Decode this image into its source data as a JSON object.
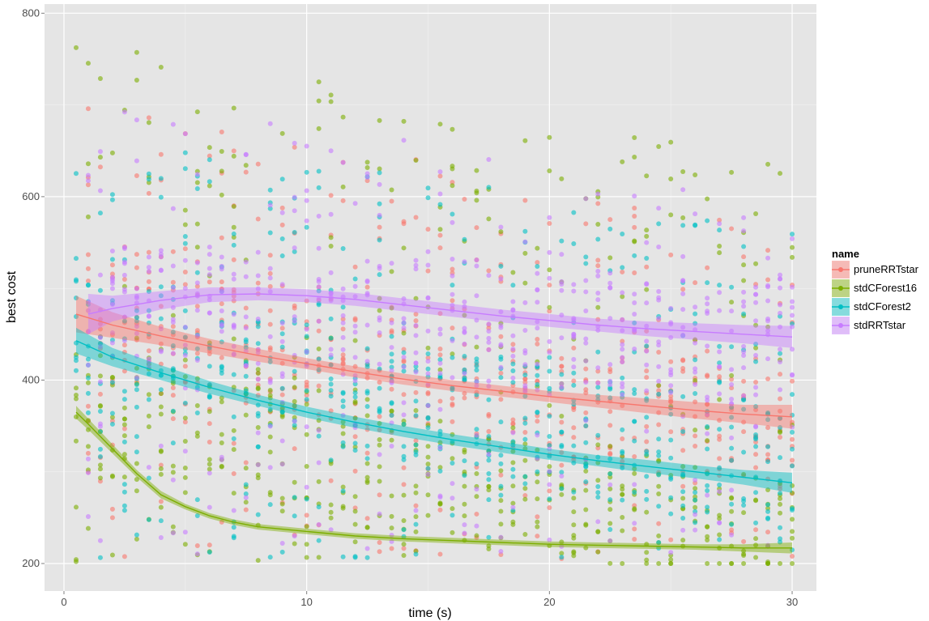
{
  "chart_data": {
    "type": "scatter",
    "title": "",
    "xlabel": "time (s)",
    "ylabel": "best cost",
    "xlim": [
      -0.8,
      31.0
    ],
    "ylim": [
      170,
      810
    ],
    "x_ticks": [
      0,
      10,
      20,
      30
    ],
    "y_ticks": [
      200,
      400,
      600,
      800
    ],
    "grid": true,
    "legend": {
      "title": "name",
      "position": "right",
      "entries": [
        "pruneRRTstar",
        "stdCForest16",
        "stdCForest2",
        "stdRRTstar"
      ]
    },
    "series": [
      {
        "name": "pruneRRTstar",
        "color": "#F8766D",
        "smooth_x": [
          0.5,
          2,
          4,
          6,
          8,
          10,
          12,
          14,
          16,
          18,
          20,
          22,
          24,
          26,
          28,
          30
        ],
        "smooth_y": [
          472,
          460,
          448,
          437,
          427,
          418,
          409,
          401,
          394,
          388,
          382,
          377,
          372,
          367,
          363,
          360
        ],
        "band_half": [
          20,
          14,
          10,
          8,
          7,
          6,
          6,
          6,
          6,
          6,
          6,
          7,
          8,
          9,
          10,
          13
        ],
        "points_x_range": [
          1,
          30
        ],
        "points_y_range": [
          205,
          700
        ],
        "points_y_center": [
          470,
          340
        ]
      },
      {
        "name": "stdCForest16",
        "color": "#7CAE00",
        "smooth_x": [
          0.5,
          1,
          2,
          3,
          4,
          5,
          6,
          7,
          8,
          10,
          12,
          14,
          16,
          18,
          20,
          22,
          24,
          26,
          28,
          30
        ],
        "smooth_y": [
          365,
          352,
          325,
          298,
          275,
          262,
          252,
          245,
          240,
          235,
          230,
          227,
          225,
          223,
          221,
          220,
          219,
          218,
          217,
          217
        ],
        "band_half": [
          7,
          6,
          5,
          4,
          4,
          3,
          3,
          3,
          3,
          3,
          3,
          3,
          3,
          3,
          3,
          3,
          3,
          3,
          4,
          6
        ],
        "points_x_range": [
          0.5,
          30
        ],
        "points_y_range": [
          200,
          780
        ],
        "points_y_center": [
          370,
          220
        ]
      },
      {
        "name": "stdCForest2",
        "color": "#00BFC4",
        "smooth_x": [
          0.5,
          2,
          4,
          6,
          8,
          10,
          12,
          14,
          16,
          18,
          20,
          22,
          24,
          26,
          28,
          30
        ],
        "smooth_y": [
          443,
          425,
          408,
          392,
          378,
          365,
          354,
          344,
          335,
          327,
          319,
          312,
          306,
          300,
          294,
          288
        ],
        "band_half": [
          14,
          10,
          8,
          7,
          6,
          6,
          6,
          6,
          6,
          6,
          6,
          6,
          7,
          7,
          8,
          11
        ],
        "points_x_range": [
          0.5,
          30
        ],
        "points_y_range": [
          205,
          680
        ],
        "points_y_center": [
          440,
          300
        ]
      },
      {
        "name": "stdRRTstar",
        "color": "#C77CFF",
        "smooth_x": [
          1,
          2,
          4,
          6,
          8,
          10,
          12,
          14,
          16,
          18,
          20,
          22,
          24,
          26,
          28,
          30
        ],
        "smooth_y": [
          472,
          478,
          487,
          493,
          494,
          492,
          488,
          482,
          476,
          470,
          465,
          460,
          456,
          453,
          450,
          447
        ],
        "band_half": [
          22,
          14,
          10,
          8,
          7,
          7,
          7,
          7,
          7,
          7,
          7,
          7,
          8,
          9,
          10,
          12
        ],
        "points_x_range": [
          1,
          30
        ],
        "points_y_range": [
          210,
          720
        ],
        "points_y_center": [
          480,
          440
        ]
      }
    ]
  }
}
